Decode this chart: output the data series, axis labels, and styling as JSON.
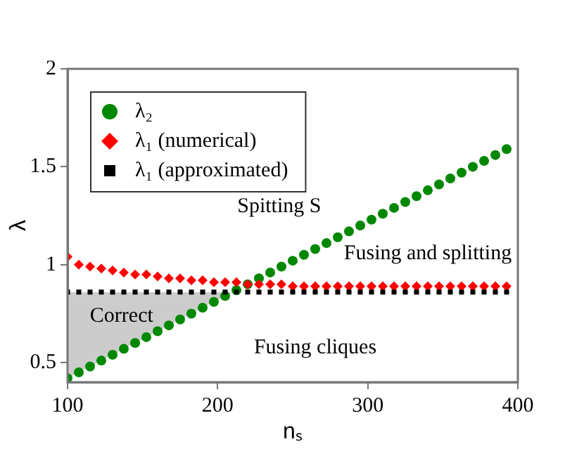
{
  "chart_data": {
    "type": "scatter",
    "xlabel": "nₛ",
    "ylabel": "λ",
    "x": [
      100,
      107.5,
      115,
      122.5,
      130,
      137.5,
      145,
      152.5,
      160,
      167.5,
      175,
      182.5,
      190,
      197.5,
      205,
      212.5,
      220,
      227.5,
      235,
      242.5,
      250,
      257.5,
      265,
      272.5,
      280,
      287.5,
      295,
      302.5,
      310,
      317.5,
      325,
      332.5,
      340,
      347.5,
      355,
      362.5,
      370,
      377.5,
      385,
      392.5
    ],
    "series": [
      {
        "name": "λ₂",
        "color": "#008800",
        "marker": "circle",
        "values": [
          0.42,
          0.45,
          0.48,
          0.51,
          0.54,
          0.57,
          0.6,
          0.63,
          0.66,
          0.69,
          0.72,
          0.75,
          0.78,
          0.81,
          0.84,
          0.87,
          0.9,
          0.93,
          0.96,
          0.99,
          1.02,
          1.05,
          1.08,
          1.11,
          1.14,
          1.17,
          1.2,
          1.23,
          1.26,
          1.29,
          1.32,
          1.35,
          1.38,
          1.41,
          1.44,
          1.47,
          1.5,
          1.53,
          1.56,
          1.59
        ]
      },
      {
        "name": "λ₁ (numerical)",
        "color": "#ff0000",
        "marker": "diamond",
        "values": [
          1.04,
          1.0,
          0.99,
          0.98,
          0.97,
          0.96,
          0.95,
          0.95,
          0.94,
          0.93,
          0.93,
          0.92,
          0.92,
          0.91,
          0.91,
          0.91,
          0.9,
          0.9,
          0.9,
          0.9,
          0.89,
          0.89,
          0.89,
          0.89,
          0.89,
          0.89,
          0.89,
          0.89,
          0.89,
          0.89,
          0.89,
          0.89,
          0.89,
          0.89,
          0.89,
          0.89,
          0.89,
          0.89,
          0.89,
          0.89
        ]
      },
      {
        "name": "λ₁ (approximated)",
        "color": "#000000",
        "marker": "square",
        "values": [
          0.86,
          0.86,
          0.86,
          0.86,
          0.86,
          0.86,
          0.86,
          0.86,
          0.86,
          0.86,
          0.86,
          0.86,
          0.86,
          0.86,
          0.86,
          0.86,
          0.86,
          0.86,
          0.86,
          0.86,
          0.86,
          0.86,
          0.86,
          0.86,
          0.86,
          0.86,
          0.86,
          0.86,
          0.86,
          0.86,
          0.86,
          0.86,
          0.86,
          0.86,
          0.86,
          0.86,
          0.86,
          0.86,
          0.86,
          0.86
        ]
      }
    ],
    "xlim": [
      100,
      400
    ],
    "xticks": [
      100,
      200,
      300,
      400
    ],
    "ylim": [
      0.4,
      2
    ],
    "yticks": [
      0.5,
      1,
      1.5,
      2
    ],
    "grid": false,
    "legend": "top left",
    "annotations": [
      "Spitting S",
      "Fusing and splitting",
      "Correct",
      "Fusing cliques"
    ]
  }
}
